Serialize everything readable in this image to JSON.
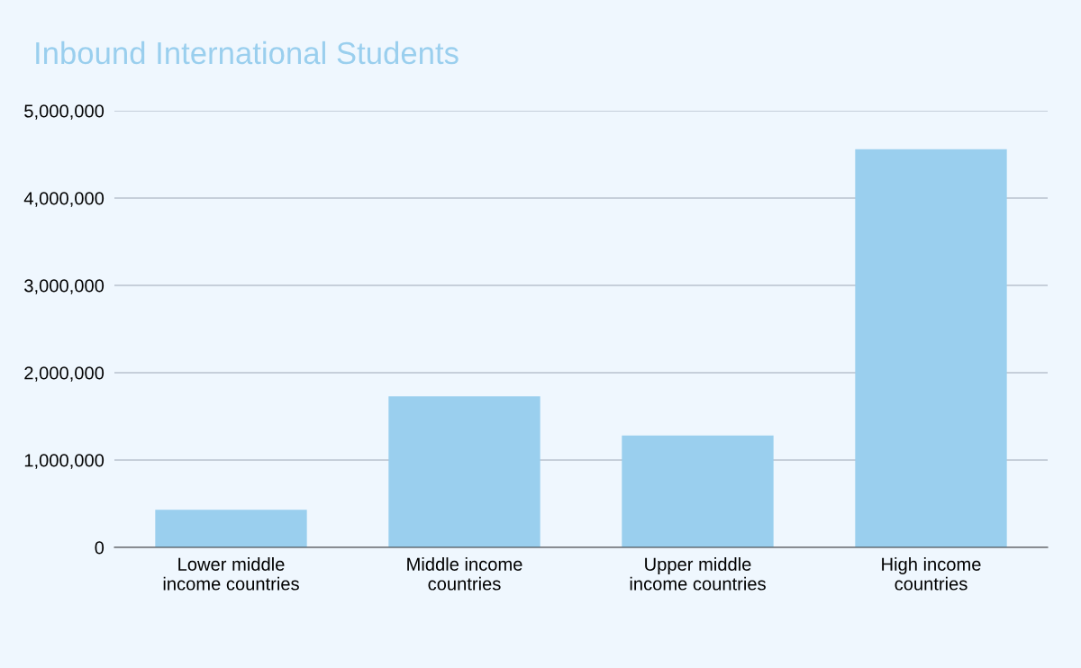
{
  "chart_data": {
    "type": "bar",
    "title": "Inbound International Students",
    "categories": [
      "Lower middle\nincome countries",
      "Middle income\ncountries",
      "Upper middle\nincome countries",
      "High income\ncountries"
    ],
    "values": [
      430000,
      1730000,
      1280000,
      4560000
    ],
    "color": "#9acfee",
    "ylim": [
      0,
      5000000
    ],
    "yticks": [
      {
        "value": 0,
        "label": "0"
      },
      {
        "value": 1000000,
        "label": "1,000,000"
      },
      {
        "value": 2000000,
        "label": "2,000,000"
      },
      {
        "value": 3000000,
        "label": "3,000,000"
      },
      {
        "value": 4000000,
        "label": "4,000,000"
      },
      {
        "value": 5000000,
        "label": "5,000,000"
      }
    ],
    "grid": "y",
    "legend": false
  }
}
